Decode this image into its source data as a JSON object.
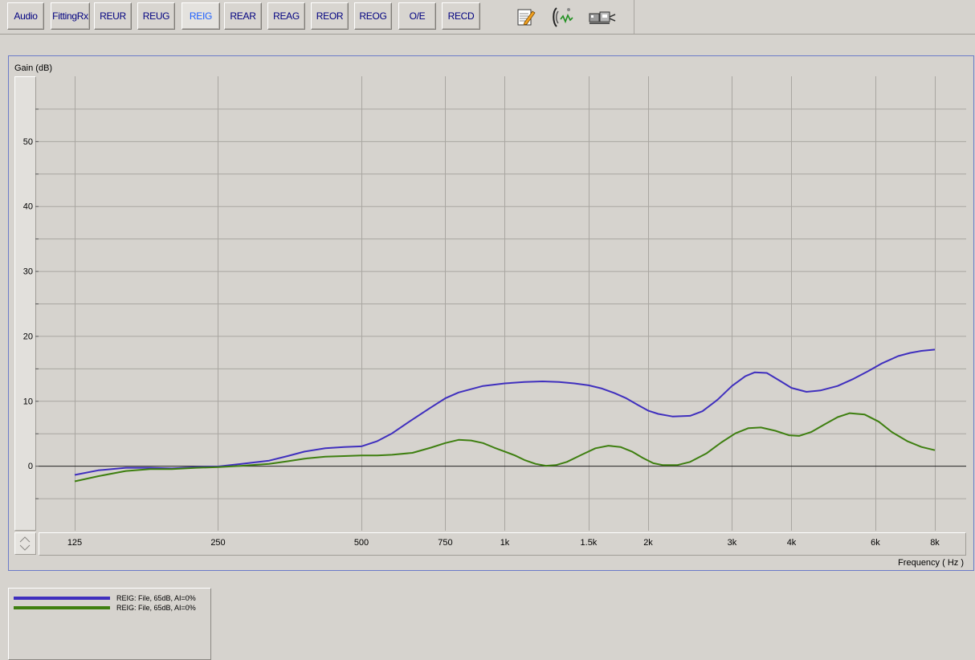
{
  "toolbar": {
    "buttons": [
      {
        "label": "Audio"
      },
      {
        "label": "FittingRx"
      },
      {
        "label": "REUR"
      },
      {
        "label": "REUG"
      },
      {
        "label": "REIG"
      },
      {
        "label": "REAR"
      },
      {
        "label": "REAG"
      },
      {
        "label": "REOR"
      },
      {
        "label": "REOG"
      },
      {
        "label": "O/E"
      },
      {
        "label": "RECD"
      }
    ],
    "active": "REIG",
    "icons": [
      "notepad-pencil-icon",
      "ear-probe-icon",
      "equipment-icon"
    ]
  },
  "colors": {
    "background": "#d6d3ce",
    "series1": "#3f2fbe",
    "series2": "#3e7f10",
    "active_text": "#1c5fff",
    "button_text": "#000080"
  },
  "chart_data": {
    "type": "line",
    "xlabel": "Frequency ( Hz )",
    "ylabel": "Gain (dB)",
    "xscale": "log",
    "xlim": [
      120,
      8000
    ],
    "ylim": [
      -10,
      60
    ],
    "x_ticks": [
      {
        "value": 125,
        "label": "125"
      },
      {
        "value": 250,
        "label": "250"
      },
      {
        "value": 500,
        "label": "500"
      },
      {
        "value": 750,
        "label": "750"
      },
      {
        "value": 1000,
        "label": "1k"
      },
      {
        "value": 1500,
        "label": "1.5k"
      },
      {
        "value": 2000,
        "label": "2k"
      },
      {
        "value": 3000,
        "label": "3k"
      },
      {
        "value": 4000,
        "label": "4k"
      },
      {
        "value": 6000,
        "label": "6k"
      },
      {
        "value": 8000,
        "label": "8k"
      }
    ],
    "y_ticks": [
      {
        "value": 0,
        "label": "0"
      },
      {
        "value": 10,
        "label": "10"
      },
      {
        "value": 20,
        "label": "20"
      },
      {
        "value": 30,
        "label": "30"
      },
      {
        "value": 40,
        "label": "40"
      },
      {
        "value": 50,
        "label": "50"
      }
    ],
    "grid": true,
    "legend_position": "bottom-left",
    "series": [
      {
        "name": "REIG: File, 65dB, AI=0%",
        "color": "#3f2fbe",
        "points": [
          [
            125,
            -1.4
          ],
          [
            140,
            -0.7
          ],
          [
            160,
            -0.3
          ],
          [
            180,
            -0.3
          ],
          [
            200,
            -0.4
          ],
          [
            225,
            -0.2
          ],
          [
            250,
            -0.1
          ],
          [
            280,
            0.3
          ],
          [
            320,
            0.8
          ],
          [
            350,
            1.5
          ],
          [
            380,
            2.2
          ],
          [
            420,
            2.7
          ],
          [
            460,
            2.9
          ],
          [
            500,
            3.0
          ],
          [
            540,
            3.8
          ],
          [
            580,
            5.0
          ],
          [
            630,
            6.8
          ],
          [
            700,
            9.0
          ],
          [
            750,
            10.4
          ],
          [
            800,
            11.3
          ],
          [
            900,
            12.3
          ],
          [
            1000,
            12.7
          ],
          [
            1100,
            12.9
          ],
          [
            1200,
            13.0
          ],
          [
            1300,
            12.9
          ],
          [
            1400,
            12.7
          ],
          [
            1500,
            12.4
          ],
          [
            1600,
            11.9
          ],
          [
            1700,
            11.2
          ],
          [
            1800,
            10.4
          ],
          [
            1900,
            9.4
          ],
          [
            2000,
            8.5
          ],
          [
            2100,
            8.0
          ],
          [
            2250,
            7.6
          ],
          [
            2450,
            7.7
          ],
          [
            2600,
            8.4
          ],
          [
            2800,
            10.2
          ],
          [
            3000,
            12.3
          ],
          [
            3200,
            13.8
          ],
          [
            3350,
            14.4
          ],
          [
            3550,
            14.3
          ],
          [
            3800,
            13.0
          ],
          [
            4000,
            12.0
          ],
          [
            4300,
            11.4
          ],
          [
            4600,
            11.6
          ],
          [
            5000,
            12.3
          ],
          [
            5400,
            13.4
          ],
          [
            5800,
            14.6
          ],
          [
            6200,
            15.8
          ],
          [
            6700,
            16.9
          ],
          [
            7100,
            17.4
          ],
          [
            7500,
            17.7
          ],
          [
            8000,
            17.9
          ]
        ]
      },
      {
        "name": "REIG: File, 65dB, AI=0%",
        "color": "#3e7f10",
        "points": [
          [
            125,
            -2.4
          ],
          [
            140,
            -1.6
          ],
          [
            160,
            -0.8
          ],
          [
            180,
            -0.5
          ],
          [
            200,
            -0.5
          ],
          [
            225,
            -0.3
          ],
          [
            250,
            -0.2
          ],
          [
            280,
            0.0
          ],
          [
            320,
            0.3
          ],
          [
            350,
            0.7
          ],
          [
            380,
            1.1
          ],
          [
            420,
            1.4
          ],
          [
            460,
            1.5
          ],
          [
            500,
            1.6
          ],
          [
            540,
            1.6
          ],
          [
            580,
            1.7
          ],
          [
            640,
            2.0
          ],
          [
            700,
            2.8
          ],
          [
            750,
            3.5
          ],
          [
            800,
            4.0
          ],
          [
            850,
            3.9
          ],
          [
            900,
            3.5
          ],
          [
            950,
            2.8
          ],
          [
            1000,
            2.2
          ],
          [
            1050,
            1.6
          ],
          [
            1100,
            0.9
          ],
          [
            1160,
            0.3
          ],
          [
            1220,
            0.0
          ],
          [
            1280,
            0.1
          ],
          [
            1350,
            0.6
          ],
          [
            1450,
            1.7
          ],
          [
            1550,
            2.7
          ],
          [
            1650,
            3.1
          ],
          [
            1750,
            2.9
          ],
          [
            1850,
            2.2
          ],
          [
            1950,
            1.2
          ],
          [
            2050,
            0.4
          ],
          [
            2150,
            0.1
          ],
          [
            2300,
            0.1
          ],
          [
            2450,
            0.6
          ],
          [
            2650,
            1.9
          ],
          [
            2850,
            3.6
          ],
          [
            3050,
            5.0
          ],
          [
            3250,
            5.8
          ],
          [
            3450,
            5.9
          ],
          [
            3700,
            5.4
          ],
          [
            3950,
            4.7
          ],
          [
            4150,
            4.6
          ],
          [
            4400,
            5.2
          ],
          [
            4700,
            6.4
          ],
          [
            5000,
            7.5
          ],
          [
            5300,
            8.1
          ],
          [
            5700,
            7.9
          ],
          [
            6100,
            6.8
          ],
          [
            6500,
            5.2
          ],
          [
            7000,
            3.8
          ],
          [
            7500,
            2.9
          ],
          [
            8000,
            2.4
          ]
        ]
      }
    ]
  }
}
